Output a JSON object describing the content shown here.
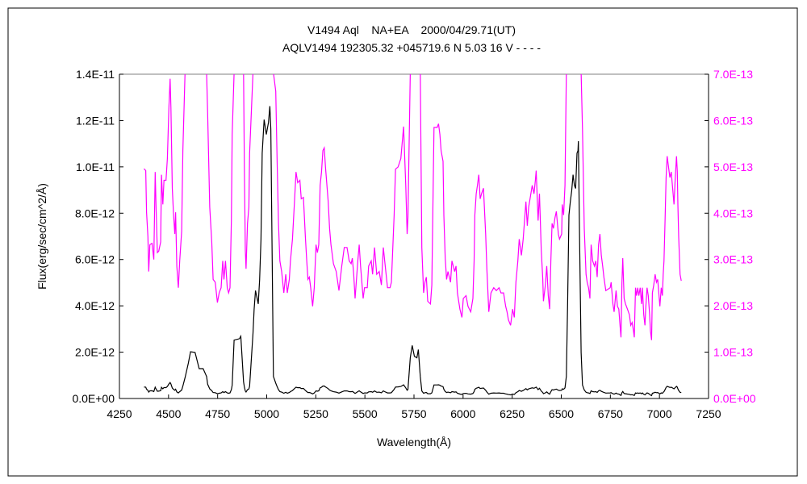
{
  "chart_data": {
    "type": "line",
    "title_lines": [
      "V1494 Aql    NA+EA    2000/04/29.71(UT)",
      "AQLV1494 192305.32 +045719.6 N 5.03 16 V - - - -"
    ],
    "xlabel": "Wavelength(Å)",
    "ylabel": "Flux(erg/sec/cm^2/Å)",
    "xlim": [
      4250,
      7250
    ],
    "ylim_left": [
      0,
      1.4e-11
    ],
    "ylim_right": [
      0,
      7e-13
    ],
    "x_ticks": [
      "4250",
      "4500",
      "4750",
      "5000",
      "5250",
      "5500",
      "5750",
      "6000",
      "6250",
      "6500",
      "6750",
      "7000",
      "7250"
    ],
    "y_ticks_left": [
      "0.0E+00",
      "2.0E-12",
      "4.0E-12",
      "6.0E-12",
      "8.0E-12",
      "1.0E-11",
      "1.2E-11",
      "1.4E-11"
    ],
    "y_ticks_right": [
      "0.0E+00",
      "1.0E-13",
      "2.0E-13",
      "3.0E-13",
      "4.0E-13",
      "5.0E-13",
      "6.0E-13",
      "7.0E-13"
    ],
    "grid": false,
    "series": [
      {
        "axis": "left",
        "color": "#000000"
      },
      {
        "axis": "right",
        "color": "#ff00ff"
      }
    ],
    "points": [
      [
        4375,
        4.96e-13
      ],
      [
        4384,
        4.92e-13
      ],
      [
        4388,
        4.02e-13
      ],
      [
        4395,
        3.49e-13
      ],
      [
        4399,
        2.74e-13
      ],
      [
        4405,
        3.32e-13
      ],
      [
        4416,
        3.35e-13
      ],
      [
        4425,
        3e-13
      ],
      [
        4432,
        4.89e-13
      ],
      [
        4436,
        4.19e-13
      ],
      [
        4443,
        3.15e-13
      ],
      [
        4450,
        3.18e-13
      ],
      [
        4460,
        3.38e-13
      ],
      [
        4464,
        4.83e-13
      ],
      [
        4471,
        4.19e-13
      ],
      [
        4477,
        4.71e-13
      ],
      [
        4487,
        4.71e-13
      ],
      [
        4494,
        5.18e-13
      ],
      [
        4502,
        6.28e-13
      ],
      [
        4508,
        6.9e-13
      ],
      [
        4512,
        6.28e-13
      ],
      [
        4519,
        4.54e-13
      ],
      [
        4525,
        4.02e-13
      ],
      [
        4532,
        3.55e-13
      ],
      [
        4536,
        4.02e-13
      ],
      [
        4542,
        2.86e-13
      ],
      [
        4550,
        2.39e-13
      ],
      [
        4557,
        2.97e-13
      ],
      [
        4567,
        3.61e-13
      ],
      [
        4573,
        5.35e-13
      ],
      [
        4584,
        9e-13
      ],
      [
        4601,
        1.53e-12
      ],
      [
        4612,
        2.02e-12
      ],
      [
        4635,
        1.99e-12
      ],
      [
        4656,
        1.29e-12
      ],
      [
        4676,
        1.29e-12
      ],
      [
        4694,
        9.5e-13
      ],
      [
        4699,
        6.16e-13
      ],
      [
        4710,
        4.13e-13
      ],
      [
        4720,
        3.38e-13
      ],
      [
        4727,
        2.57e-13
      ],
      [
        4738,
        2.51e-13
      ],
      [
        4749,
        2.07e-13
      ],
      [
        4758,
        2.28e-13
      ],
      [
        4768,
        2.39e-13
      ],
      [
        4776,
        2.97e-13
      ],
      [
        4782,
        2.57e-13
      ],
      [
        4790,
        2.97e-13
      ],
      [
        4799,
        2.39e-13
      ],
      [
        4806,
        2.28e-13
      ],
      [
        4813,
        2.39e-13
      ],
      [
        4820,
        3.84e-13
      ],
      [
        4824,
        5.7e-13
      ],
      [
        4834,
        2.52e-12
      ],
      [
        4861,
        2.58e-12
      ],
      [
        4868,
        2.69e-12
      ],
      [
        4882,
        7.2e-13
      ],
      [
        4886,
        5e-13
      ],
      [
        4891,
        3.2e-13
      ],
      [
        4895,
        2.8e-13
      ],
      [
        4902,
        3.78e-13
      ],
      [
        4909,
        4.13e-13
      ],
      [
        4913,
        5.29e-13
      ],
      [
        4930,
        2.81e-12
      ],
      [
        4936,
        3.85e-12
      ],
      [
        4943,
        4.66e-12
      ],
      [
        4957,
        4.08e-12
      ],
      [
        4964,
        5.12e-12
      ],
      [
        4971,
        6.87e-12
      ],
      [
        4977,
        1.059e-11
      ],
      [
        4987,
        1.204e-11
      ],
      [
        4998,
        1.14e-11
      ],
      [
        5009,
        1.192e-11
      ],
      [
        5016,
        1.262e-11
      ],
      [
        5021,
        1.163e-11
      ],
      [
        5028,
        5.94e-12
      ],
      [
        5034,
        9.5e-13
      ],
      [
        5046,
        6.63e-13
      ],
      [
        5053,
        5.12e-13
      ],
      [
        5060,
        3.78e-13
      ],
      [
        5067,
        2.97e-13
      ],
      [
        5076,
        2.74e-13
      ],
      [
        5087,
        2.28e-13
      ],
      [
        5097,
        2.68e-13
      ],
      [
        5105,
        2.28e-13
      ],
      [
        5115,
        2.57e-13
      ],
      [
        5121,
        2.97e-13
      ],
      [
        5131,
        3.44e-13
      ],
      [
        5142,
        4.31e-13
      ],
      [
        5149,
        4.89e-13
      ],
      [
        5158,
        4.66e-13
      ],
      [
        5169,
        4.71e-13
      ],
      [
        5176,
        4.31e-13
      ],
      [
        5187,
        4.34e-13
      ],
      [
        5197,
        3.49e-13
      ],
      [
        5204,
        2.97e-13
      ],
      [
        5210,
        2.57e-13
      ],
      [
        5217,
        2.62e-13
      ],
      [
        5224,
        2.39e-13
      ],
      [
        5234,
        1.99e-13
      ],
      [
        5242,
        2.39e-13
      ],
      [
        5251,
        3.32e-13
      ],
      [
        5258,
        3.15e-13
      ],
      [
        5265,
        3.32e-13
      ],
      [
        5272,
        4.6e-13
      ],
      [
        5279,
        4.89e-13
      ],
      [
        5286,
        5.35e-13
      ],
      [
        5293,
        5.41e-13
      ],
      [
        5299,
        5e-13
      ],
      [
        5313,
        4.25e-13
      ],
      [
        5320,
        3.67e-13
      ],
      [
        5327,
        3.32e-13
      ],
      [
        5340,
        2.91e-13
      ],
      [
        5354,
        2.74e-13
      ],
      [
        5368,
        2.33e-13
      ],
      [
        5382,
        2.86e-13
      ],
      [
        5395,
        3.26e-13
      ],
      [
        5409,
        3.26e-13
      ],
      [
        5420,
        2.97e-13
      ],
      [
        5430,
        2.91e-13
      ],
      [
        5436,
        3.03e-13
      ],
      [
        5443,
        2.68e-13
      ],
      [
        5450,
        2.16e-13
      ],
      [
        5464,
        2.97e-13
      ],
      [
        5471,
        3.32e-13
      ],
      [
        5478,
        2.86e-13
      ],
      [
        5491,
        2.16e-13
      ],
      [
        5498,
        2.39e-13
      ],
      [
        5512,
        2.39e-13
      ],
      [
        5519,
        2.86e-13
      ],
      [
        5532,
        2.97e-13
      ],
      [
        5539,
        2.68e-13
      ],
      [
        5549,
        3.26e-13
      ],
      [
        5560,
        2.68e-13
      ],
      [
        5573,
        2.74e-13
      ],
      [
        5584,
        2.45e-13
      ],
      [
        5594,
        3.26e-13
      ],
      [
        5601,
        2.97e-13
      ],
      [
        5615,
        2.39e-13
      ],
      [
        5628,
        2.39e-13
      ],
      [
        5635,
        2.51e-13
      ],
      [
        5649,
        3.96e-13
      ],
      [
        5656,
        4.95e-13
      ],
      [
        5669,
        5e-13
      ],
      [
        5683,
        5.18e-13
      ],
      [
        5697,
        5.87e-13
      ],
      [
        5708,
        4.6e-13
      ],
      [
        5715,
        3.55e-13
      ],
      [
        5719,
        3.9e-13
      ],
      [
        5731,
        1.76e-12
      ],
      [
        5741,
        2.29e-12
      ],
      [
        5752,
        1.82e-12
      ],
      [
        5765,
        1.76e-12
      ],
      [
        5772,
        2.11e-12
      ],
      [
        5782,
        9.5e-13
      ],
      [
        5790,
        3.26e-13
      ],
      [
        5799,
        2.28e-13
      ],
      [
        5806,
        2.51e-13
      ],
      [
        5813,
        2.62e-13
      ],
      [
        5820,
        2.1e-13
      ],
      [
        5834,
        2.04e-13
      ],
      [
        5841,
        2.45e-13
      ],
      [
        5847,
        4.36e-13
      ],
      [
        5852,
        5.85e-13
      ],
      [
        5868,
        5.85e-13
      ],
      [
        5875,
        5.93e-13
      ],
      [
        5882,
        5.7e-13
      ],
      [
        5888,
        5.35e-13
      ],
      [
        5898,
        5.12e-13
      ],
      [
        5902,
        3.96e-13
      ],
      [
        5909,
        3.03e-13
      ],
      [
        5916,
        2.57e-13
      ],
      [
        5923,
        2.74e-13
      ],
      [
        5936,
        2.51e-13
      ],
      [
        5943,
        2.97e-13
      ],
      [
        5957,
        2.74e-13
      ],
      [
        5964,
        2.86e-13
      ],
      [
        5971,
        2.28e-13
      ],
      [
        5984,
        1.93e-13
      ],
      [
        5994,
        1.75e-13
      ],
      [
        6001,
        2.16e-13
      ],
      [
        6015,
        2.22e-13
      ],
      [
        6025,
        1.99e-13
      ],
      [
        6039,
        1.87e-13
      ],
      [
        6050,
        2.16e-13
      ],
      [
        6056,
        2.97e-13
      ],
      [
        6060,
        3.96e-13
      ],
      [
        6067,
        4.42e-13
      ],
      [
        6073,
        4.6e-13
      ],
      [
        6080,
        4.83e-13
      ],
      [
        6087,
        4.31e-13
      ],
      [
        6094,
        4.42e-13
      ],
      [
        6104,
        4.54e-13
      ],
      [
        6115,
        3.55e-13
      ],
      [
        6121,
        2.8e-13
      ],
      [
        6131,
        1.87e-13
      ],
      [
        6142,
        2.28e-13
      ],
      [
        6156,
        2.39e-13
      ],
      [
        6169,
        2.33e-13
      ],
      [
        6183,
        2.39e-13
      ],
      [
        6193,
        2.28e-13
      ],
      [
        6206,
        2.28e-13
      ],
      [
        6217,
        1.99e-13
      ],
      [
        6224,
        1.87e-13
      ],
      [
        6231,
        1.7e-13
      ],
      [
        6242,
        1.58e-13
      ],
      [
        6252,
        1.93e-13
      ],
      [
        6261,
        1.75e-13
      ],
      [
        6269,
        2.51e-13
      ],
      [
        6279,
        2.97e-13
      ],
      [
        6286,
        3.44e-13
      ],
      [
        6297,
        3.09e-13
      ],
      [
        6306,
        3.44e-13
      ],
      [
        6320,
        4.25e-13
      ],
      [
        6327,
        3.73e-13
      ],
      [
        6334,
        4.13e-13
      ],
      [
        6341,
        4.31e-13
      ],
      [
        6352,
        4.6e-13
      ],
      [
        6361,
        4.42e-13
      ],
      [
        6368,
        4.71e-13
      ],
      [
        6372,
        4.92e-13
      ],
      [
        6382,
        3.84e-13
      ],
      [
        6389,
        4.42e-13
      ],
      [
        6398,
        3.2e-13
      ],
      [
        6406,
        2.57e-13
      ],
      [
        6409,
        2.1e-13
      ],
      [
        6419,
        2.45e-13
      ],
      [
        6426,
        2.86e-13
      ],
      [
        6434,
        2.22e-13
      ],
      [
        6441,
        1.93e-13
      ],
      [
        6447,
        2.97e-13
      ],
      [
        6453,
        3.78e-13
      ],
      [
        6460,
        3.67e-13
      ],
      [
        6468,
        3.9e-13
      ],
      [
        6475,
        4.04e-13
      ],
      [
        6485,
        3.55e-13
      ],
      [
        6491,
        3.44e-13
      ],
      [
        6502,
        3.55e-13
      ],
      [
        6505,
        4.19e-13
      ],
      [
        6512,
        3.96e-13
      ],
      [
        6519,
        4.6e-13
      ],
      [
        6526,
        9.5e-13
      ],
      [
        6532,
        3.97e-12
      ],
      [
        6539,
        7.92e-12
      ],
      [
        6546,
        8.49e-12
      ],
      [
        6553,
        8.96e-12
      ],
      [
        6560,
        9.66e-12
      ],
      [
        6567,
        9.2e-12
      ],
      [
        6573,
        9.07e-12
      ],
      [
        6580,
        1.059e-11
      ],
      [
        6585,
        1.07e-11
      ],
      [
        6587,
        1.111e-11
      ],
      [
        6594,
        6.36e-12
      ],
      [
        6601,
        1.99e-12
      ],
      [
        6608,
        5.8e-13
      ],
      [
        6612,
        4.83e-13
      ],
      [
        6617,
        3.67e-13
      ],
      [
        6626,
        2.68e-13
      ],
      [
        6632,
        2.51e-13
      ],
      [
        6639,
        2.39e-13
      ],
      [
        6646,
        2.16e-13
      ],
      [
        6652,
        3.32e-13
      ],
      [
        6660,
        2.97e-13
      ],
      [
        6669,
        2.86e-13
      ],
      [
        6676,
        2.97e-13
      ],
      [
        6683,
        2.62e-13
      ],
      [
        6690,
        3.32e-13
      ],
      [
        6697,
        3.55e-13
      ],
      [
        6704,
        3.09e-13
      ],
      [
        6711,
        2.86e-13
      ],
      [
        6717,
        2.62e-13
      ],
      [
        6727,
        2.33e-13
      ],
      [
        6738,
        2.36e-13
      ],
      [
        6749,
        2.39e-13
      ],
      [
        6754,
        2.51e-13
      ],
      [
        6763,
        2.04e-13
      ],
      [
        6769,
        1.87e-13
      ],
      [
        6779,
        2.33e-13
      ],
      [
        6786,
        1.99e-13
      ],
      [
        6793,
        1.93e-13
      ],
      [
        6799,
        1.58e-13
      ],
      [
        6804,
        1.32e-13
      ],
      [
        6809,
        2.51e-13
      ],
      [
        6813,
        3.03e-13
      ],
      [
        6820,
        2.16e-13
      ],
      [
        6827,
        2.04e-13
      ],
      [
        6837,
        1.93e-13
      ],
      [
        6847,
        1.81e-13
      ],
      [
        6854,
        1.58e-13
      ],
      [
        6861,
        1.64e-13
      ],
      [
        6868,
        1.46e-13
      ],
      [
        6872,
        1.32e-13
      ],
      [
        6878,
        2.39e-13
      ],
      [
        6883,
        2.22e-13
      ],
      [
        6889,
        2.39e-13
      ],
      [
        6895,
        2.22e-13
      ],
      [
        6902,
        2.39e-13
      ],
      [
        6909,
        2.04e-13
      ],
      [
        6913,
        2.39e-13
      ],
      [
        6920,
        1.81e-13
      ],
      [
        6926,
        1.58e-13
      ],
      [
        6930,
        1.93e-13
      ],
      [
        6937,
        2.39e-13
      ],
      [
        6943,
        2.22e-13
      ],
      [
        6950,
        1.81e-13
      ],
      [
        6954,
        1.46e-13
      ],
      [
        6960,
        1.26e-13
      ],
      [
        6964,
        2.28e-13
      ],
      [
        6971,
        2.45e-13
      ],
      [
        6978,
        2.68e-13
      ],
      [
        6985,
        2.51e-13
      ],
      [
        6991,
        2.57e-13
      ],
      [
        7002,
        1.99e-13
      ],
      [
        7009,
        2.39e-13
      ],
      [
        7015,
        2.22e-13
      ],
      [
        7019,
        2.68e-13
      ],
      [
        7023,
        2.97e-13
      ],
      [
        7029,
        3.9e-13
      ],
      [
        7034,
        4.77e-13
      ],
      [
        7039,
        5.23e-13
      ],
      [
        7046,
        5e-13
      ],
      [
        7053,
        4.77e-13
      ],
      [
        7060,
        4.89e-13
      ],
      [
        7067,
        4.54e-13
      ],
      [
        7074,
        4.19e-13
      ],
      [
        7080,
        4.71e-13
      ],
      [
        7087,
        5.23e-13
      ],
      [
        7091,
        4.89e-13
      ],
      [
        7094,
        4.19e-13
      ],
      [
        7098,
        3.49e-13
      ],
      [
        7105,
        2.68e-13
      ],
      [
        7111,
        2.54e-13
      ]
    ]
  }
}
